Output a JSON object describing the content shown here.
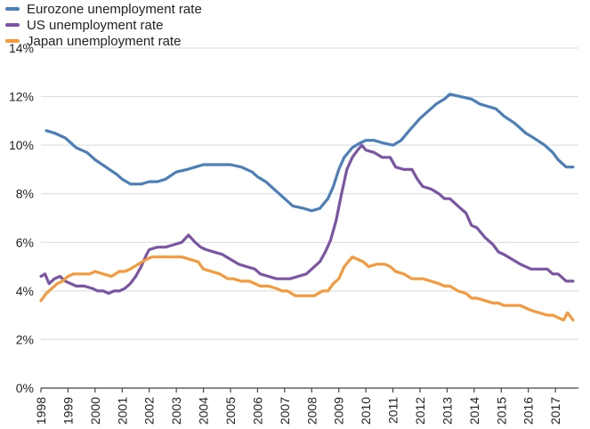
{
  "chart_data": {
    "type": "line",
    "title": "",
    "xlabel": "",
    "ylabel": "",
    "ylim": [
      0,
      14
    ],
    "xlim": [
      1998.0,
      2017.85
    ],
    "y_ticks": [
      "0%",
      "2%",
      "4%",
      "6%",
      "8%",
      "10%",
      "12%",
      "14%"
    ],
    "y_tick_values": [
      0,
      2,
      4,
      6,
      8,
      10,
      12,
      14
    ],
    "x_ticks": [
      "1998",
      "1999",
      "2000",
      "2001",
      "2002",
      "2003",
      "2004",
      "2005",
      "2006",
      "2007",
      "2008",
      "2009",
      "2010",
      "2011",
      "2012",
      "2013",
      "2014",
      "2015",
      "2016",
      "2017"
    ],
    "grid": "horizontal",
    "legend_position": "top-left",
    "series": [
      {
        "name": "Eurozone unemployment rate",
        "color": "#4a7fb9",
        "points": [
          [
            1998.2,
            10.6
          ],
          [
            1998.5,
            10.5
          ],
          [
            1998.9,
            10.3
          ],
          [
            1999.3,
            9.9
          ],
          [
            1999.7,
            9.7
          ],
          [
            2000.0,
            9.4
          ],
          [
            2000.4,
            9.1
          ],
          [
            2000.8,
            8.8
          ],
          [
            2001.0,
            8.6
          ],
          [
            2001.3,
            8.4
          ],
          [
            2001.7,
            8.4
          ],
          [
            2002.0,
            8.5
          ],
          [
            2002.3,
            8.5
          ],
          [
            2002.6,
            8.6
          ],
          [
            2003.0,
            8.9
          ],
          [
            2003.4,
            9.0
          ],
          [
            2003.7,
            9.1
          ],
          [
            2004.0,
            9.2
          ],
          [
            2004.3,
            9.2
          ],
          [
            2004.6,
            9.2
          ],
          [
            2005.0,
            9.2
          ],
          [
            2005.4,
            9.1
          ],
          [
            2005.8,
            8.9
          ],
          [
            2006.0,
            8.7
          ],
          [
            2006.3,
            8.5
          ],
          [
            2006.6,
            8.2
          ],
          [
            2007.0,
            7.8
          ],
          [
            2007.3,
            7.5
          ],
          [
            2007.7,
            7.4
          ],
          [
            2008.0,
            7.3
          ],
          [
            2008.3,
            7.4
          ],
          [
            2008.6,
            7.8
          ],
          [
            2008.8,
            8.3
          ],
          [
            2009.0,
            9.0
          ],
          [
            2009.2,
            9.5
          ],
          [
            2009.5,
            9.9
          ],
          [
            2009.8,
            10.1
          ],
          [
            2010.0,
            10.2
          ],
          [
            2010.3,
            10.2
          ],
          [
            2010.6,
            10.1
          ],
          [
            2011.0,
            10.0
          ],
          [
            2011.3,
            10.2
          ],
          [
            2011.6,
            10.6
          ],
          [
            2012.0,
            11.1
          ],
          [
            2012.3,
            11.4
          ],
          [
            2012.6,
            11.7
          ],
          [
            2012.9,
            11.9
          ],
          [
            2013.1,
            12.1
          ],
          [
            2013.5,
            12.0
          ],
          [
            2013.9,
            11.9
          ],
          [
            2014.2,
            11.7
          ],
          [
            2014.5,
            11.6
          ],
          [
            2014.8,
            11.5
          ],
          [
            2015.1,
            11.2
          ],
          [
            2015.5,
            10.9
          ],
          [
            2015.9,
            10.5
          ],
          [
            2016.2,
            10.3
          ],
          [
            2016.6,
            10.0
          ],
          [
            2016.9,
            9.7
          ],
          [
            2017.1,
            9.4
          ],
          [
            2017.4,
            9.1
          ],
          [
            2017.65,
            9.1
          ]
        ]
      },
      {
        "name": "US unemployment rate",
        "color": "#7c54a6",
        "points": [
          [
            1998.0,
            4.6
          ],
          [
            1998.15,
            4.7
          ],
          [
            1998.3,
            4.3
          ],
          [
            1998.5,
            4.5
          ],
          [
            1998.7,
            4.6
          ],
          [
            1998.9,
            4.4
          ],
          [
            1999.1,
            4.3
          ],
          [
            1999.3,
            4.2
          ],
          [
            1999.6,
            4.2
          ],
          [
            1999.9,
            4.1
          ],
          [
            2000.1,
            4.0
          ],
          [
            2000.3,
            4.0
          ],
          [
            2000.5,
            3.9
          ],
          [
            2000.7,
            4.0
          ],
          [
            2000.9,
            4.0
          ],
          [
            2001.1,
            4.1
          ],
          [
            2001.3,
            4.3
          ],
          [
            2001.5,
            4.6
          ],
          [
            2001.7,
            5.0
          ],
          [
            2001.9,
            5.5
          ],
          [
            2002.0,
            5.7
          ],
          [
            2002.3,
            5.8
          ],
          [
            2002.6,
            5.8
          ],
          [
            2002.9,
            5.9
          ],
          [
            2003.2,
            6.0
          ],
          [
            2003.45,
            6.3
          ],
          [
            2003.7,
            6.0
          ],
          [
            2003.9,
            5.8
          ],
          [
            2004.1,
            5.7
          ],
          [
            2004.4,
            5.6
          ],
          [
            2004.7,
            5.5
          ],
          [
            2005.0,
            5.3
          ],
          [
            2005.3,
            5.1
          ],
          [
            2005.6,
            5.0
          ],
          [
            2005.9,
            4.9
          ],
          [
            2006.1,
            4.7
          ],
          [
            2006.4,
            4.6
          ],
          [
            2006.7,
            4.5
          ],
          [
            2006.9,
            4.5
          ],
          [
            2007.2,
            4.5
          ],
          [
            2007.5,
            4.6
          ],
          [
            2007.8,
            4.7
          ],
          [
            2008.0,
            4.9
          ],
          [
            2008.3,
            5.2
          ],
          [
            2008.5,
            5.6
          ],
          [
            2008.7,
            6.1
          ],
          [
            2008.9,
            6.9
          ],
          [
            2009.1,
            8.0
          ],
          [
            2009.3,
            9.0
          ],
          [
            2009.5,
            9.5
          ],
          [
            2009.7,
            9.8
          ],
          [
            2009.85,
            10.0
          ],
          [
            2010.0,
            9.8
          ],
          [
            2010.3,
            9.7
          ],
          [
            2010.6,
            9.5
          ],
          [
            2010.9,
            9.5
          ],
          [
            2011.1,
            9.1
          ],
          [
            2011.4,
            9.0
          ],
          [
            2011.7,
            9.0
          ],
          [
            2011.9,
            8.6
          ],
          [
            2012.1,
            8.3
          ],
          [
            2012.4,
            8.2
          ],
          [
            2012.7,
            8.0
          ],
          [
            2012.9,
            7.8
          ],
          [
            2013.1,
            7.8
          ],
          [
            2013.4,
            7.5
          ],
          [
            2013.7,
            7.2
          ],
          [
            2013.9,
            6.7
          ],
          [
            2014.1,
            6.6
          ],
          [
            2014.4,
            6.2
          ],
          [
            2014.7,
            5.9
          ],
          [
            2014.9,
            5.6
          ],
          [
            2015.1,
            5.5
          ],
          [
            2015.4,
            5.3
          ],
          [
            2015.7,
            5.1
          ],
          [
            2015.9,
            5.0
          ],
          [
            2016.1,
            4.9
          ],
          [
            2016.4,
            4.9
          ],
          [
            2016.7,
            4.9
          ],
          [
            2016.9,
            4.7
          ],
          [
            2017.1,
            4.7
          ],
          [
            2017.4,
            4.4
          ],
          [
            2017.65,
            4.4
          ]
        ]
      },
      {
        "name": "Japan unemployment rate",
        "color": "#f59a3c",
        "points": [
          [
            1998.0,
            3.6
          ],
          [
            1998.2,
            3.9
          ],
          [
            1998.4,
            4.1
          ],
          [
            1998.6,
            4.3
          ],
          [
            1998.8,
            4.4
          ],
          [
            1999.0,
            4.6
          ],
          [
            1999.2,
            4.7
          ],
          [
            1999.4,
            4.7
          ],
          [
            1999.6,
            4.7
          ],
          [
            1999.8,
            4.7
          ],
          [
            2000.0,
            4.8
          ],
          [
            2000.3,
            4.7
          ],
          [
            2000.6,
            4.6
          ],
          [
            2000.9,
            4.8
          ],
          [
            2001.1,
            4.8
          ],
          [
            2001.3,
            4.9
          ],
          [
            2001.6,
            5.1
          ],
          [
            2001.9,
            5.3
          ],
          [
            2002.1,
            5.4
          ],
          [
            2002.4,
            5.4
          ],
          [
            2002.7,
            5.4
          ],
          [
            2002.9,
            5.4
          ],
          [
            2003.2,
            5.4
          ],
          [
            2003.5,
            5.3
          ],
          [
            2003.8,
            5.2
          ],
          [
            2004.0,
            4.9
          ],
          [
            2004.3,
            4.8
          ],
          [
            2004.6,
            4.7
          ],
          [
            2004.9,
            4.5
          ],
          [
            2005.1,
            4.5
          ],
          [
            2005.4,
            4.4
          ],
          [
            2005.7,
            4.4
          ],
          [
            2005.9,
            4.3
          ],
          [
            2006.1,
            4.2
          ],
          [
            2006.4,
            4.2
          ],
          [
            2006.7,
            4.1
          ],
          [
            2006.9,
            4.0
          ],
          [
            2007.1,
            4.0
          ],
          [
            2007.4,
            3.8
          ],
          [
            2007.7,
            3.8
          ],
          [
            2007.9,
            3.8
          ],
          [
            2008.1,
            3.8
          ],
          [
            2008.4,
            4.0
          ],
          [
            2008.6,
            4.0
          ],
          [
            2008.8,
            4.3
          ],
          [
            2009.0,
            4.5
          ],
          [
            2009.2,
            5.0
          ],
          [
            2009.5,
            5.4
          ],
          [
            2009.7,
            5.3
          ],
          [
            2009.9,
            5.2
          ],
          [
            2010.1,
            5.0
          ],
          [
            2010.4,
            5.1
          ],
          [
            2010.7,
            5.1
          ],
          [
            2010.9,
            5.0
          ],
          [
            2011.1,
            4.8
          ],
          [
            2011.4,
            4.7
          ],
          [
            2011.7,
            4.5
          ],
          [
            2011.9,
            4.5
          ],
          [
            2012.1,
            4.5
          ],
          [
            2012.4,
            4.4
          ],
          [
            2012.7,
            4.3
          ],
          [
            2012.9,
            4.2
          ],
          [
            2013.1,
            4.2
          ],
          [
            2013.4,
            4.0
          ],
          [
            2013.7,
            3.9
          ],
          [
            2013.9,
            3.7
          ],
          [
            2014.1,
            3.7
          ],
          [
            2014.4,
            3.6
          ],
          [
            2014.7,
            3.5
          ],
          [
            2014.9,
            3.5
          ],
          [
            2015.1,
            3.4
          ],
          [
            2015.4,
            3.4
          ],
          [
            2015.7,
            3.4
          ],
          [
            2015.9,
            3.3
          ],
          [
            2016.1,
            3.2
          ],
          [
            2016.4,
            3.1
          ],
          [
            2016.7,
            3.0
          ],
          [
            2016.9,
            3.0
          ],
          [
            2017.1,
            2.9
          ],
          [
            2017.3,
            2.8
          ],
          [
            2017.45,
            3.1
          ],
          [
            2017.65,
            2.8
          ]
        ]
      }
    ]
  }
}
